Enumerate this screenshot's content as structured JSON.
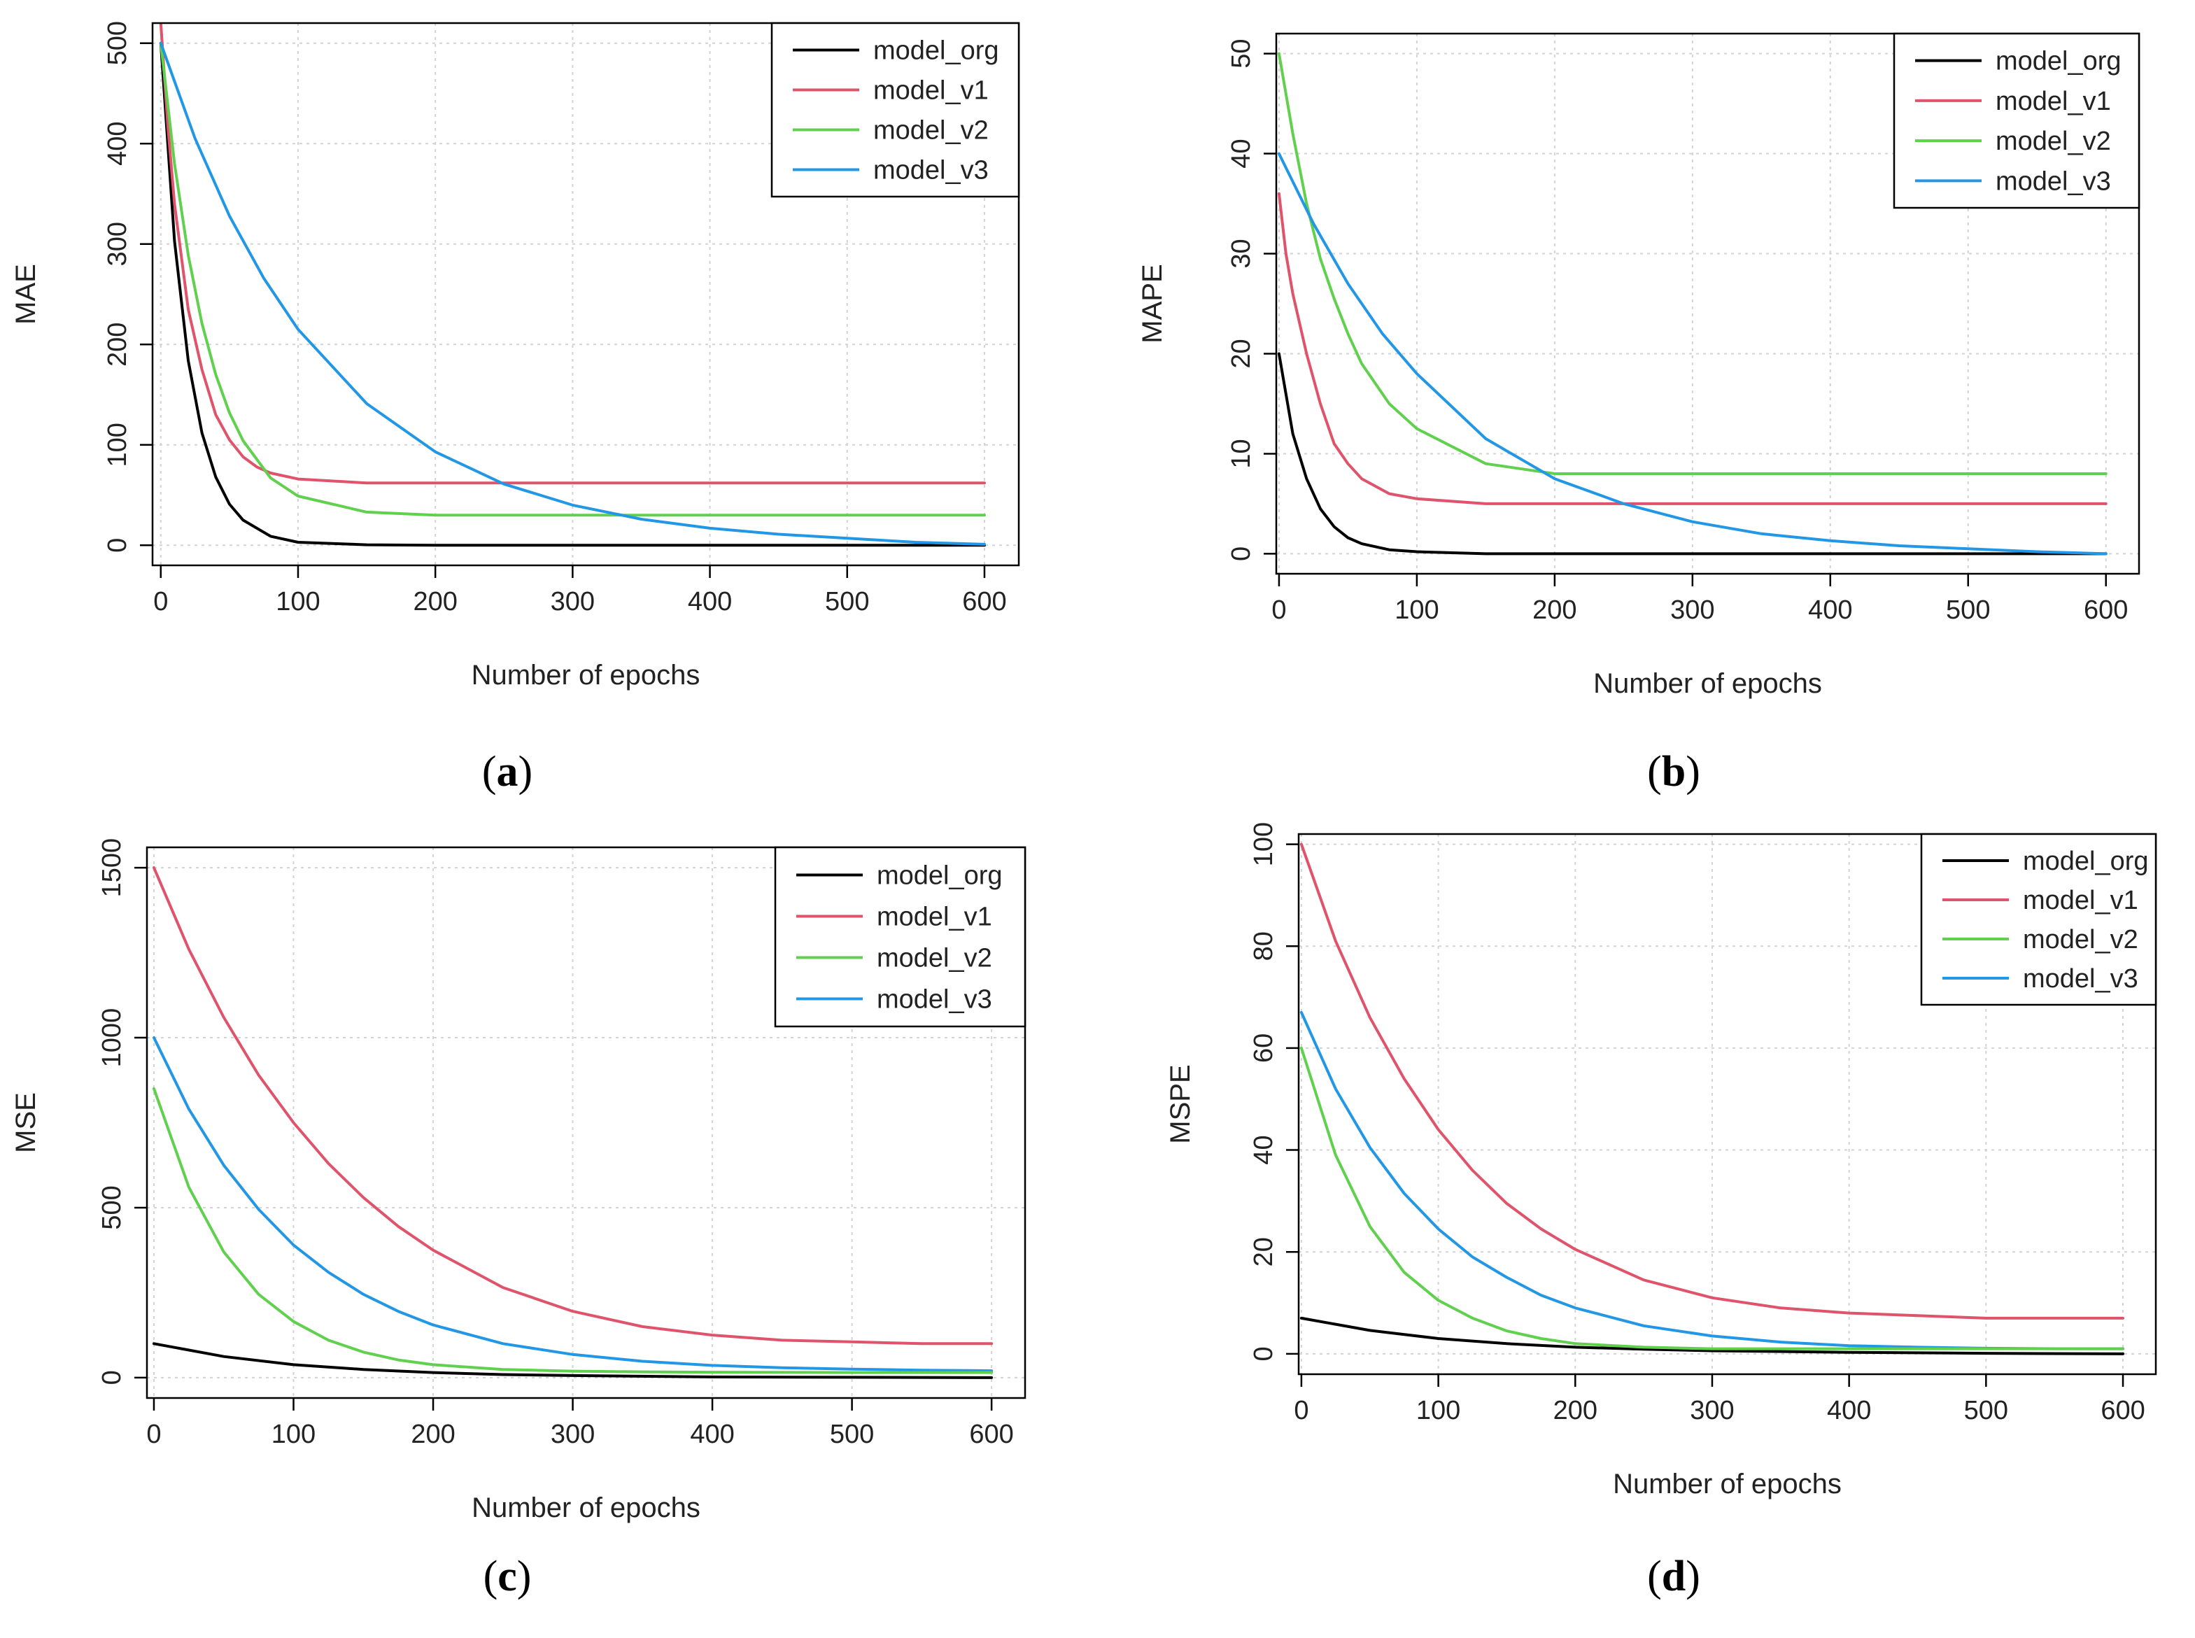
{
  "chart_data": [
    {
      "type": "line",
      "panel_label": "(a)",
      "caption_parts": [
        "(",
        "a",
        ")"
      ],
      "xlabel": "Number of epochs",
      "ylabel": "MAE",
      "xlim": [
        -6,
        625
      ],
      "ylim": [
        -20,
        520
      ],
      "xticks": [
        0,
        100,
        200,
        300,
        400,
        500,
        600
      ],
      "yticks": [
        0,
        100,
        200,
        300,
        400,
        500
      ],
      "grid": true,
      "legend_position": "top-right",
      "series": [
        {
          "name": "model_org",
          "color": "#000000",
          "x": [
            0,
            10,
            20,
            30,
            40,
            50,
            60,
            80,
            100,
            150,
            200,
            300,
            400,
            500,
            600
          ],
          "values": [
            500,
            303,
            184,
            112,
            68,
            41,
            25,
            9,
            3,
            0.5,
            0.1,
            0,
            0,
            0,
            0
          ]
        },
        {
          "name": "model_v1",
          "color": "#DF536B",
          "x": [
            0,
            5,
            10,
            20,
            30,
            40,
            50,
            60,
            70,
            80,
            100,
            150,
            200,
            300,
            400,
            500,
            600
          ],
          "values": [
            520,
            420,
            340,
            235,
            175,
            130,
            105,
            88,
            78,
            72,
            66,
            62,
            62,
            62,
            62,
            62,
            62
          ]
        },
        {
          "name": "model_v2",
          "color": "#61D04F",
          "x": [
            0,
            10,
            20,
            30,
            40,
            50,
            60,
            80,
            100,
            150,
            200,
            300,
            400,
            500,
            600
          ],
          "values": [
            500,
            380,
            289,
            221,
            170,
            132,
            104,
            67,
            49,
            33,
            30,
            30,
            30,
            30,
            30
          ]
        },
        {
          "name": "model_v3",
          "color": "#2297E6",
          "x": [
            0,
            25,
            50,
            75,
            100,
            150,
            200,
            250,
            300,
            350,
            400,
            450,
            500,
            550,
            600
          ],
          "values": [
            500,
            405,
            328,
            266,
            215,
            141,
            93,
            61,
            40,
            26,
            17,
            11,
            7,
            3,
            1
          ]
        }
      ]
    },
    {
      "type": "line",
      "panel_label": "(b)",
      "caption_parts": [
        "(",
        "b",
        ")"
      ],
      "xlabel": "Number of epochs",
      "ylabel": "MAPE",
      "xlim": [
        -2,
        624
      ],
      "ylim": [
        -2,
        52
      ],
      "xticks": [
        0,
        100,
        200,
        300,
        400,
        500,
        600
      ],
      "yticks": [
        0,
        10,
        20,
        30,
        40,
        50
      ],
      "grid": true,
      "legend_position": "top-right",
      "series": [
        {
          "name": "model_org",
          "color": "#000000",
          "x": [
            0,
            10,
            20,
            30,
            40,
            50,
            60,
            80,
            100,
            150,
            200,
            300,
            400,
            500,
            600
          ],
          "values": [
            20,
            12,
            7.5,
            4.5,
            2.7,
            1.6,
            1,
            0.4,
            0.2,
            0,
            0,
            0,
            0,
            0,
            0
          ]
        },
        {
          "name": "model_v1",
          "color": "#DF536B",
          "x": [
            0,
            5,
            10,
            20,
            30,
            40,
            50,
            60,
            80,
            100,
            150,
            200,
            300,
            400,
            500,
            600
          ],
          "values": [
            36,
            30,
            26,
            20,
            15,
            11,
            9,
            7.5,
            6,
            5.5,
            5,
            5,
            5,
            5,
            5,
            5
          ]
        },
        {
          "name": "model_v2",
          "color": "#61D04F",
          "x": [
            0,
            10,
            20,
            30,
            40,
            50,
            60,
            80,
            100,
            150,
            200,
            300,
            400,
            500,
            600
          ],
          "values": [
            50,
            42,
            35,
            29.5,
            25.5,
            22,
            19,
            15,
            12.5,
            9,
            8,
            8,
            8,
            8,
            8
          ]
        },
        {
          "name": "model_v3",
          "color": "#2297E6",
          "x": [
            0,
            25,
            50,
            75,
            100,
            150,
            200,
            250,
            300,
            350,
            400,
            450,
            500,
            550,
            600
          ],
          "values": [
            40,
            33,
            27,
            22,
            18,
            11.5,
            7.5,
            5,
            3.2,
            2,
            1.3,
            0.8,
            0.5,
            0.2,
            0
          ]
        }
      ]
    },
    {
      "type": "line",
      "panel_label": "(c)",
      "caption_parts": [
        "(",
        "c",
        ")"
      ],
      "xlabel": "Number of epochs",
      "ylabel": "MSE",
      "xlim": [
        -5,
        624
      ],
      "ylim": [
        -60,
        1560
      ],
      "xticks": [
        0,
        100,
        200,
        300,
        400,
        500,
        600
      ],
      "yticks": [
        0,
        500,
        1000,
        1500
      ],
      "grid": true,
      "legend_position": "top-right",
      "series": [
        {
          "name": "model_org",
          "color": "#000000",
          "x": [
            0,
            50,
            100,
            150,
            200,
            250,
            300,
            400,
            500,
            600
          ],
          "values": [
            100,
            62,
            38,
            24,
            15,
            9,
            6,
            2,
            1,
            0
          ]
        },
        {
          "name": "model_v1",
          "color": "#DF536B",
          "x": [
            0,
            25,
            50,
            75,
            100,
            125,
            150,
            175,
            200,
            250,
            300,
            350,
            400,
            450,
            500,
            550,
            600
          ],
          "values": [
            1500,
            1260,
            1060,
            890,
            750,
            630,
            530,
            445,
            375,
            265,
            195,
            150,
            125,
            110,
            105,
            100,
            100
          ]
        },
        {
          "name": "model_v3",
          "color": "#2297E6",
          "x": [
            0,
            25,
            50,
            75,
            100,
            125,
            150,
            175,
            200,
            250,
            300,
            350,
            400,
            450,
            500,
            550,
            600
          ],
          "values": [
            1000,
            790,
            625,
            495,
            390,
            310,
            245,
            195,
            155,
            100,
            68,
            48,
            36,
            29,
            25,
            22,
            20
          ]
        },
        {
          "name": "model_v2",
          "color": "#61D04F",
          "x": [
            0,
            25,
            50,
            75,
            100,
            125,
            150,
            175,
            200,
            250,
            300,
            350,
            400,
            500,
            600
          ],
          "values": [
            850,
            560,
            370,
            245,
            165,
            110,
            75,
            52,
            38,
            24,
            19,
            17,
            16,
            15,
            15
          ]
        }
      ]
    },
    {
      "type": "line",
      "panel_label": "(d)",
      "caption_parts": [
        "(",
        "d",
        ")"
      ],
      "xlabel": "Number of epochs",
      "ylabel": "MSPE",
      "xlim": [
        -2,
        624
      ],
      "ylim": [
        -4,
        102
      ],
      "xticks": [
        0,
        100,
        200,
        300,
        400,
        500,
        600
      ],
      "yticks": [
        0,
        20,
        40,
        60,
        80,
        100
      ],
      "grid": true,
      "legend_position": "top-right",
      "series": [
        {
          "name": "model_org",
          "color": "#000000",
          "x": [
            0,
            50,
            100,
            150,
            200,
            250,
            300,
            400,
            500,
            600
          ],
          "values": [
            7,
            4.6,
            3,
            2,
            1.3,
            0.9,
            0.6,
            0.3,
            0.1,
            0
          ]
        },
        {
          "name": "model_v1",
          "color": "#DF536B",
          "x": [
            0,
            25,
            50,
            75,
            100,
            125,
            150,
            175,
            200,
            250,
            300,
            350,
            400,
            450,
            500,
            550,
            600
          ],
          "values": [
            100,
            81,
            66,
            54,
            44,
            36,
            29.5,
            24.5,
            20.5,
            14.5,
            11,
            9,
            8,
            7.5,
            7,
            7,
            7
          ]
        },
        {
          "name": "model_v3",
          "color": "#2297E6",
          "x": [
            0,
            25,
            50,
            75,
            100,
            125,
            150,
            175,
            200,
            250,
            300,
            350,
            400,
            450,
            500,
            550,
            600
          ],
          "values": [
            67,
            52,
            40.5,
            31.5,
            24.5,
            19,
            15,
            11.5,
            9,
            5.5,
            3.5,
            2.3,
            1.6,
            1.3,
            1.1,
            1,
            1
          ]
        },
        {
          "name": "model_v2",
          "color": "#61D04F",
          "x": [
            0,
            25,
            50,
            75,
            100,
            125,
            150,
            175,
            200,
            250,
            300,
            350,
            400,
            500,
            600
          ],
          "values": [
            60,
            39,
            25,
            16,
            10.5,
            7,
            4.5,
            3,
            2,
            1.3,
            1,
            1,
            1,
            1,
            1
          ]
        }
      ]
    }
  ]
}
